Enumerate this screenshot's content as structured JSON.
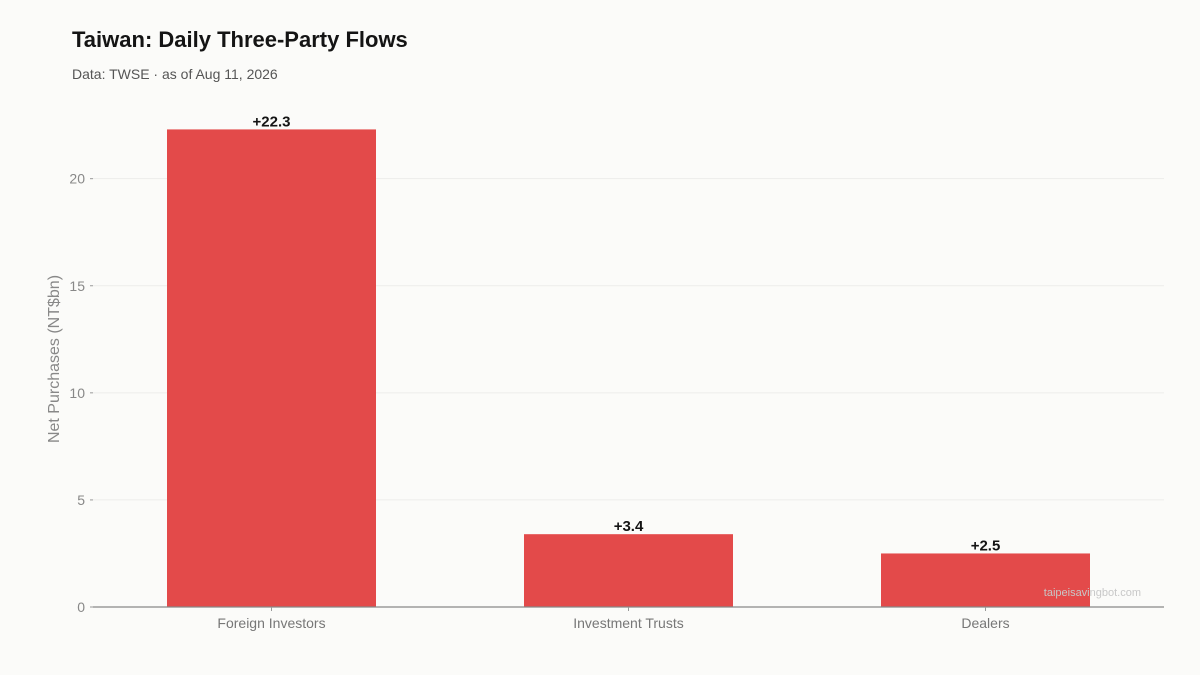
{
  "chart_data": {
    "type": "bar",
    "title": "Taiwan: Daily Three-Party Flows",
    "subtitle": "Data: TWSE · as of Aug 11, 2026",
    "ylabel": "Net Purchases (NT$bn)",
    "xlabel": "",
    "categories": [
      "Foreign Investors",
      "Investment Trusts",
      "Dealers"
    ],
    "values": [
      22.3,
      3.4,
      2.5
    ],
    "data_labels": [
      "+22.3",
      "+3.4",
      "+2.5"
    ],
    "ylim": [
      0,
      23.3
    ],
    "yticks": [
      0,
      5,
      10,
      15,
      20
    ],
    "grid": true,
    "bar_color": "#e34a4a",
    "watermark": "taipeisavingbot.com"
  }
}
